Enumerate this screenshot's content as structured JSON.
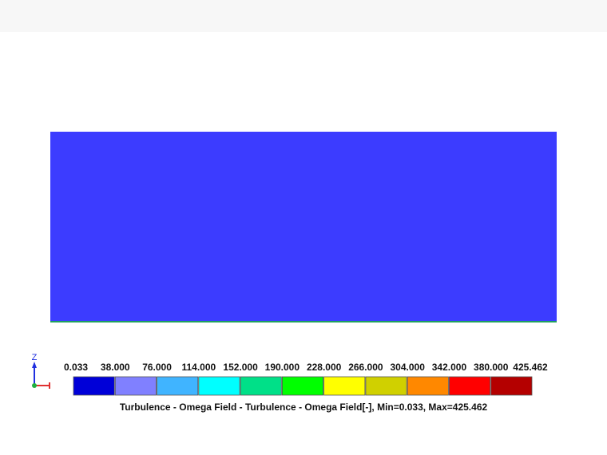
{
  "viewport": {
    "field_color": "#3c3cff",
    "edge_color": "#20a060"
  },
  "triad": {
    "axis_label": "Z"
  },
  "legend": {
    "labels": [
      "0.033",
      "38.000",
      "76.000",
      "114.000",
      "152.000",
      "190.000",
      "228.000",
      "266.000",
      "304.000",
      "342.000",
      "380.000",
      "425.462"
    ],
    "colors": [
      "#0000d8",
      "#8080ff",
      "#40b4ff",
      "#00ffff",
      "#00e088",
      "#00ff00",
      "#ffff00",
      "#d0d000",
      "#ff8800",
      "#ff0000",
      "#b40000"
    ],
    "caption": "Turbulence - Omega Field  - Turbulence - Omega Field[-], Min=0.033, Max=425.462"
  }
}
